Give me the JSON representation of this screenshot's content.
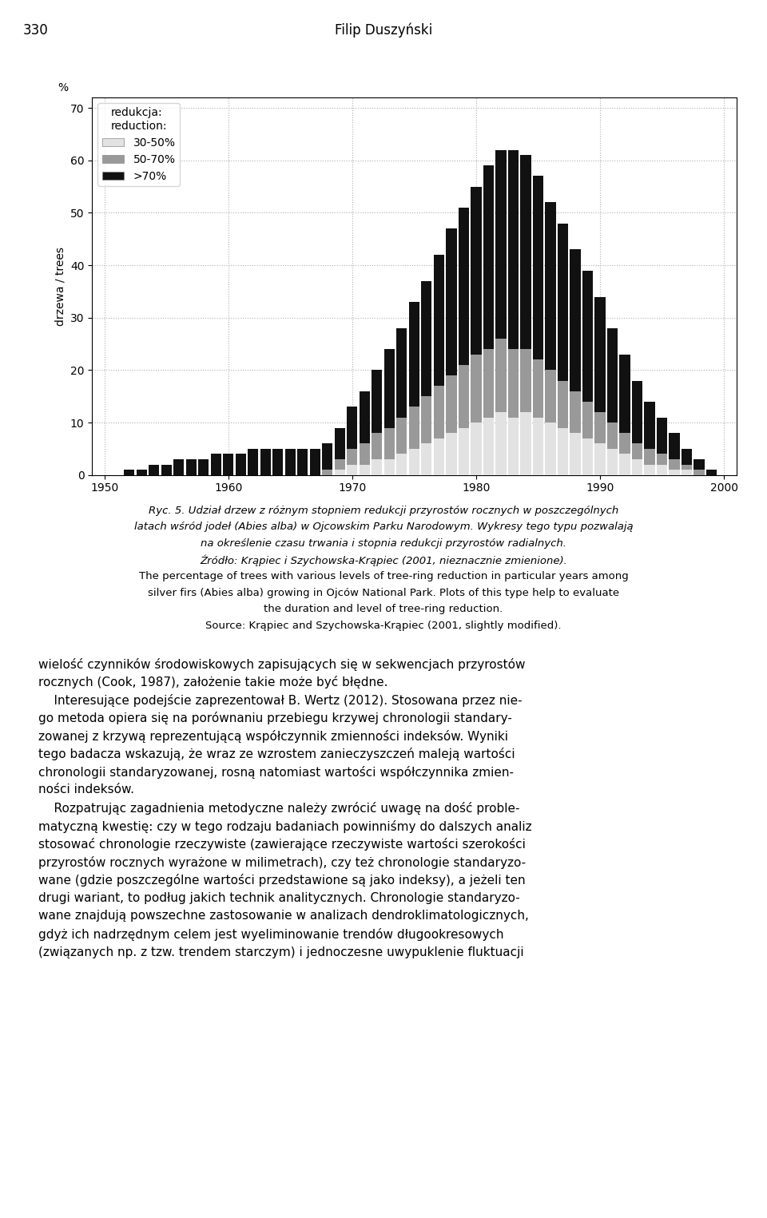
{
  "chart_data": {
    "type": "bar",
    "stacked": true,
    "x": [
      1951,
      1952,
      1953,
      1954,
      1955,
      1956,
      1957,
      1958,
      1959,
      1960,
      1961,
      1962,
      1963,
      1964,
      1965,
      1966,
      1967,
      1968,
      1969,
      1970,
      1971,
      1972,
      1973,
      1974,
      1975,
      1976,
      1977,
      1978,
      1979,
      1980,
      1981,
      1982,
      1983,
      1984,
      1985,
      1986,
      1987,
      1988,
      1989,
      1990,
      1991,
      1992,
      1993,
      1994,
      1995,
      1996,
      1997,
      1998,
      1999,
      2000
    ],
    "series": [
      {
        "name": "30-50%",
        "color": "#e2e2e2",
        "values": [
          0,
          0,
          0,
          0,
          0,
          0,
          0,
          0,
          0,
          0,
          0,
          0,
          0,
          0,
          0,
          0,
          0,
          0,
          1,
          2,
          2,
          3,
          3,
          4,
          5,
          6,
          7,
          8,
          9,
          10,
          11,
          12,
          11,
          12,
          11,
          10,
          9,
          8,
          7,
          6,
          5,
          4,
          3,
          2,
          2,
          1,
          1,
          0,
          0,
          0
        ]
      },
      {
        "name": "50-70%",
        "color": "#999999",
        "values": [
          0,
          0,
          0,
          0,
          0,
          0,
          0,
          0,
          0,
          0,
          0,
          0,
          0,
          0,
          0,
          0,
          0,
          1,
          2,
          3,
          4,
          5,
          6,
          7,
          8,
          9,
          10,
          11,
          12,
          13,
          13,
          14,
          13,
          12,
          11,
          10,
          9,
          8,
          7,
          6,
          5,
          4,
          3,
          3,
          2,
          2,
          1,
          1,
          0,
          0
        ]
      },
      {
        "name": ">70%",
        "color": "#111111",
        "values": [
          0,
          1,
          1,
          2,
          2,
          3,
          3,
          3,
          4,
          4,
          4,
          5,
          5,
          5,
          5,
          5,
          5,
          5,
          6,
          8,
          10,
          12,
          15,
          17,
          20,
          22,
          25,
          28,
          30,
          32,
          35,
          36,
          38,
          37,
          35,
          32,
          30,
          27,
          25,
          22,
          18,
          15,
          12,
          9,
          7,
          5,
          3,
          2,
          1,
          0
        ]
      }
    ],
    "xlim": [
      1949,
      2001
    ],
    "xticks": [
      1950,
      1960,
      1970,
      1980,
      1990,
      2000
    ],
    "ylim": [
      0,
      72
    ],
    "yticks": [
      0,
      10,
      20,
      30,
      40,
      50,
      60,
      70
    ],
    "ylabel": "drzewa / trees",
    "y_unit_label": "%",
    "grid": true,
    "legend": "upper left",
    "legend_title": [
      "redukcja:",
      "reduction:"
    ],
    "page_header": [
      "330",
      "Filip Duszyński"
    ],
    "caption_pl": [
      "Ryc. 5. Udział drzew z różnym stopniem redukcji przyrostów rocznych w poszczególnych",
      "latach wśród jodeł (Abies alba) w Ojcowskim Parku Narodowym. Wykresy tego typu pozwalają",
      "na określenie czasu trwania i stopnia redukcji przyrostów radialnych.",
      "Źródło: Krąpiec i Szychowska-Krąpiec (2001, nieznacznie zmienione)."
    ],
    "caption_en": [
      "The percentage of trees with various levels of tree-ring reduction in particular years among",
      "silver firs (Abies alba) growing in Ojców National Park. Plots of this type help to evaluate",
      "the duration and level of tree-ring reduction.",
      "Source: Krąpiec and Szychowska-Krąpiec (2001, slightly modified)."
    ],
    "body_text": [
      "wielość czynników środowiskowych zapisujących się w sekwencjach przyrostów",
      "rocznych (Cook, 1987), założenie takie może być błędne.",
      "    Interesujące podejście zaprezentował B. Wertz (2012). Stosowana przez nie-",
      "go metoda opiera się na porównaniu przebiegu krzywej chronologii standary-",
      "zowanej z krzywą reprezentującą współczynnik zmienności indeksów. Wyniki",
      "tego badacza wskazują, że wraz ze wzrostem zanieczyszczeń maleją wartości",
      "chronologii standaryzowanej, rosną natomiast wartości współczynnika zmien-",
      "ności indeksów.",
      "    Rozpatrując zagadnienia metodyczne należy zwrócić uwagę na dość proble-",
      "matyczną kwestię: czy w tego rodzaju badaniach powinniśmy do dalszych analiz",
      "stosować chronologie rzeczywiste (zawierające rzeczywiste wartości szerokości",
      "przyrostów rocznych wyrażone w milimetrach), czy też chronologie standaryzo-",
      "wane (gdzie poszczególne wartości przedstawione są jako indeksy), a jeżeli ten",
      "drugi wariant, to podług jakich technik analitycznych. Chronologie standaryzo-",
      "wane znajdują powszechne zastosowanie w analizach dendroklimatologicznych,",
      "gdyż ich nadrzędnym celem jest wyeliminowanie trendów długookresowych",
      "(związanych np. z tzw. trendem starczym) i jednoczesne uwypuklenie fluktuacji"
    ]
  }
}
